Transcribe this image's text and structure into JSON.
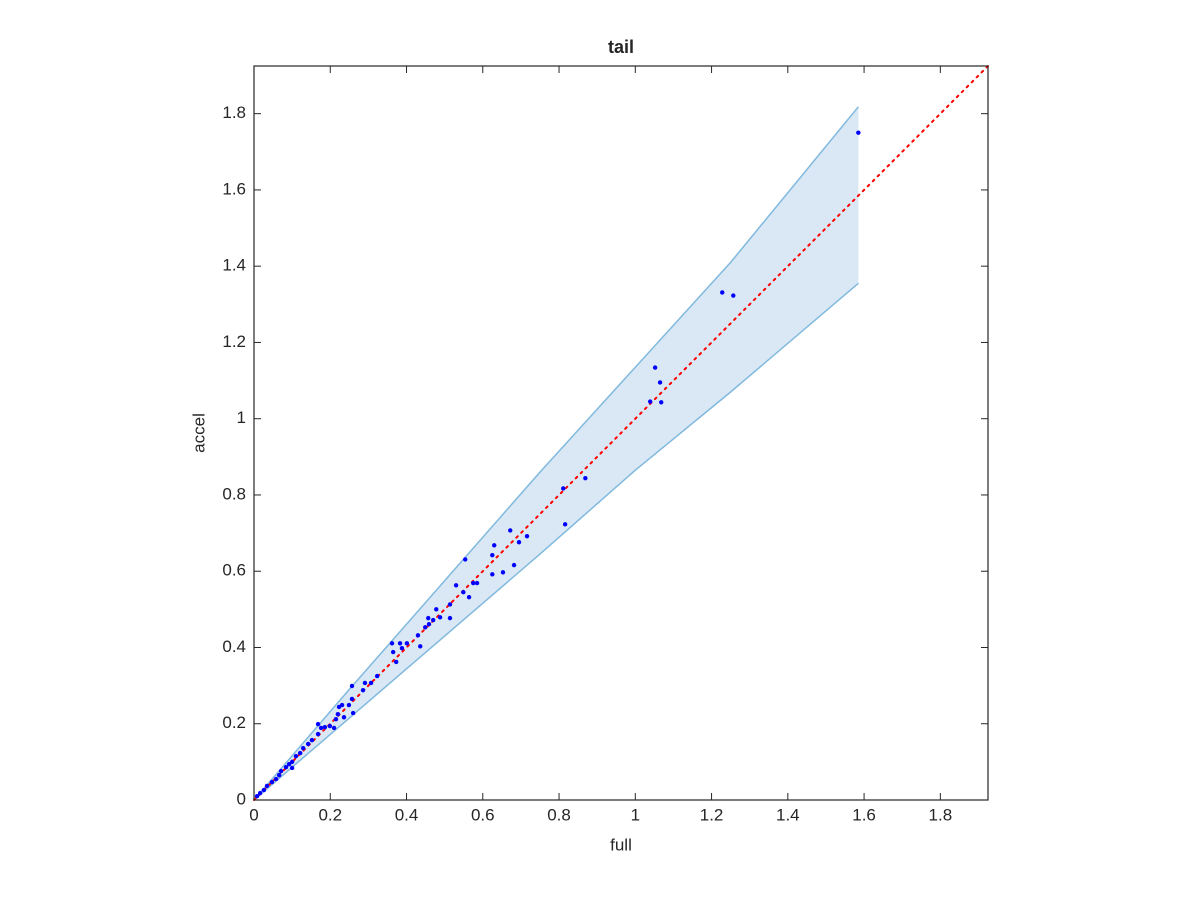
{
  "chart_data": {
    "type": "scatter",
    "title": "tail",
    "x_label": "full",
    "y_label": "accel",
    "xlim": [
      0,
      1.925
    ],
    "ylim": [
      0,
      1.925
    ],
    "xticks": [
      0,
      0.2,
      0.4,
      0.6,
      0.8,
      1,
      1.2,
      1.4,
      1.6,
      1.8
    ],
    "yticks": [
      0,
      0.2,
      0.4,
      0.6,
      0.8,
      1,
      1.2,
      1.4,
      1.6,
      1.8
    ],
    "band": {
      "x": [
        0,
        0.25,
        0.5,
        0.75,
        1.0,
        1.25,
        1.585
      ],
      "upper": [
        0,
        0.29,
        0.575,
        0.86,
        1.135,
        1.41,
        1.818
      ],
      "lower": [
        0,
        0.215,
        0.43,
        0.645,
        0.865,
        1.07,
        1.355
      ],
      "color": "#80b9de",
      "fill": "#d9e8f4"
    },
    "reference_line": {
      "x": [
        0,
        1.925
      ],
      "y": [
        0,
        1.925
      ],
      "color": "#ff0000",
      "style": "dotted"
    },
    "series": [
      {
        "color": "#0000ff",
        "x": [
          1.585,
          1.228,
          1.257,
          1.052,
          1.065,
          1.039,
          1.068,
          0.869,
          0.811,
          0.816,
          0.672,
          0.716,
          0.695,
          0.63,
          0.625,
          0.682,
          0.625,
          0.653,
          0.554,
          0.575,
          0.585,
          0.53,
          0.549,
          0.564,
          0.514,
          0.514,
          0.478,
          0.488,
          0.47,
          0.457,
          0.449,
          0.459,
          0.43,
          0.436,
          0.401,
          0.388,
          0.383,
          0.365,
          0.362,
          0.373,
          0.323,
          0.307,
          0.291,
          0.286,
          0.257,
          0.257,
          0.249,
          0.26,
          0.231,
          0.223,
          0.22,
          0.215,
          0.236,
          0.199,
          0.21,
          0.168,
          0.176,
          0.186,
          0.168,
          0.152,
          0.142,
          0.129,
          0.121,
          0.11,
          0.1,
          0.092,
          0.084,
          0.1,
          0.071,
          0.066,
          0.058,
          0.047,
          0.034,
          0.026,
          0.016,
          0.008
        ],
        "values": [
          1.75,
          1.331,
          1.323,
          1.134,
          1.095,
          1.045,
          1.043,
          0.844,
          0.817,
          0.723,
          0.707,
          0.692,
          0.676,
          0.668,
          0.642,
          0.616,
          0.592,
          0.597,
          0.631,
          0.569,
          0.569,
          0.563,
          0.545,
          0.532,
          0.513,
          0.477,
          0.5,
          0.479,
          0.472,
          0.477,
          0.453,
          0.461,
          0.432,
          0.403,
          0.411,
          0.398,
          0.411,
          0.388,
          0.411,
          0.362,
          0.325,
          0.307,
          0.307,
          0.288,
          0.299,
          0.265,
          0.249,
          0.228,
          0.249,
          0.244,
          0.225,
          0.212,
          0.217,
          0.194,
          0.189,
          0.199,
          0.189,
          0.191,
          0.173,
          0.157,
          0.147,
          0.136,
          0.123,
          0.115,
          0.1,
          0.094,
          0.086,
          0.084,
          0.076,
          0.065,
          0.055,
          0.047,
          0.037,
          0.026,
          0.018,
          0.01
        ]
      }
    ]
  }
}
